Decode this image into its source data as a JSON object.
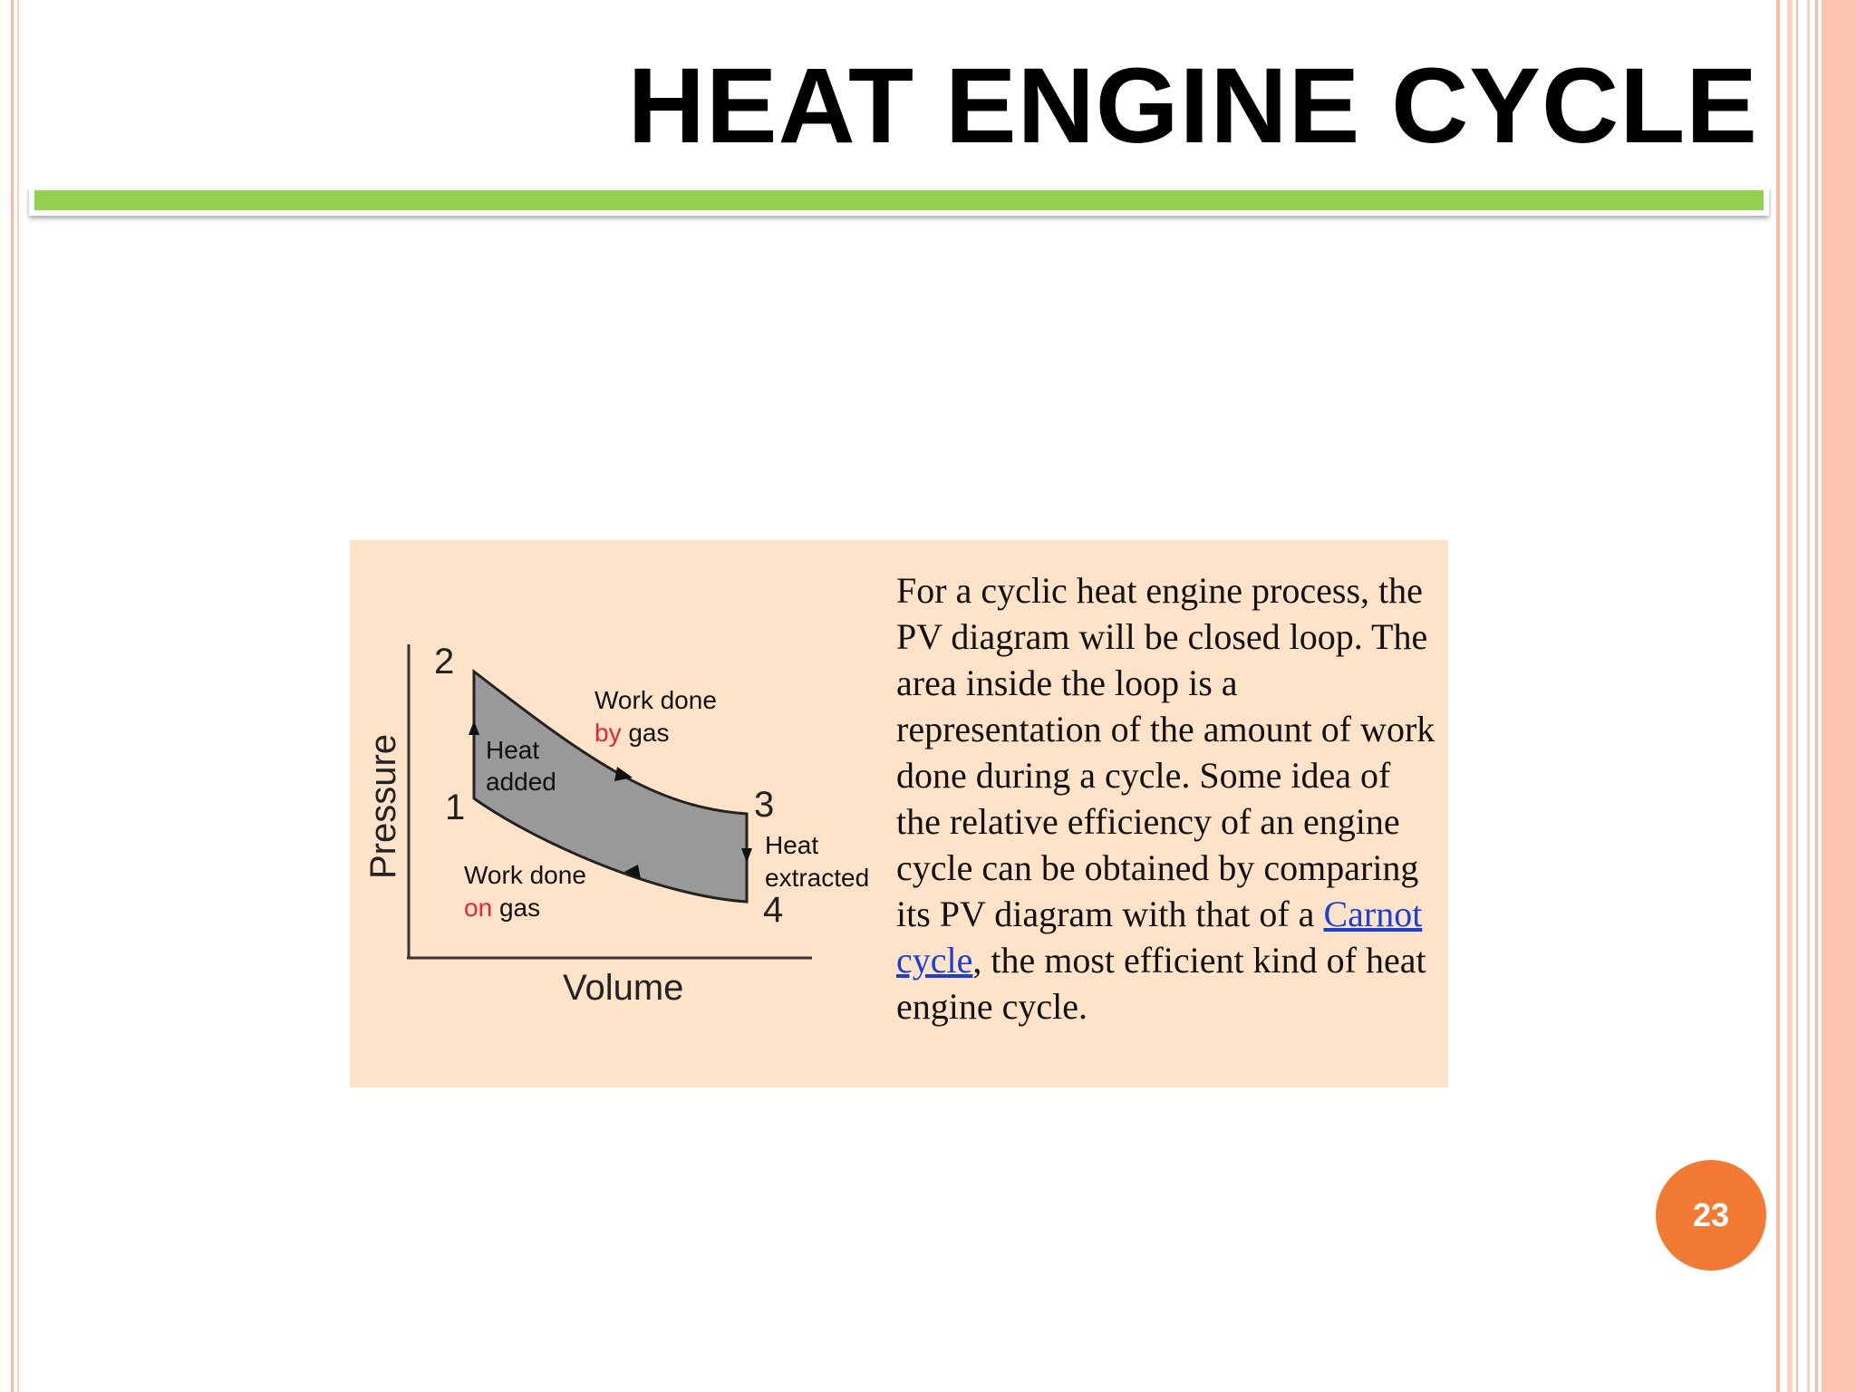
{
  "slide": {
    "title": "HEAT ENGINE CYCLE",
    "page_number": "23",
    "colors": {
      "accent_bar": "#92d050",
      "panel_background": "#ffe3c9",
      "page_badge": "#f37a33",
      "side_border": "#f9b9a2",
      "link": "#1a3fd6",
      "label_highlight": "#e8243c",
      "loop_fill": "#999999"
    }
  },
  "diagram": {
    "axis_y_label": "Pressure",
    "axis_x_label": "Volume",
    "points": [
      "1",
      "2",
      "3",
      "4"
    ],
    "heat_added": [
      "Heat",
      "added"
    ],
    "heat_extracted": [
      "Heat",
      "extracted"
    ],
    "work_by_gas": {
      "line1": "Work done",
      "highlight": "by",
      "rest": "gas"
    },
    "work_on_gas": {
      "line1": "Work done",
      "highlight": "on",
      "rest": "gas"
    }
  },
  "description": {
    "before_link": "For a cyclic heat engine process, the PV diagram will be closed loop. The area inside the loop is a representation of the amount of work done during a cycle. Some idea of the relative efficiency of an engine cycle can be obtained by comparing its PV diagram with that of a ",
    "link_text": "Carnot cycle",
    "after_link": ", the most efficient kind of heat engine cycle."
  }
}
